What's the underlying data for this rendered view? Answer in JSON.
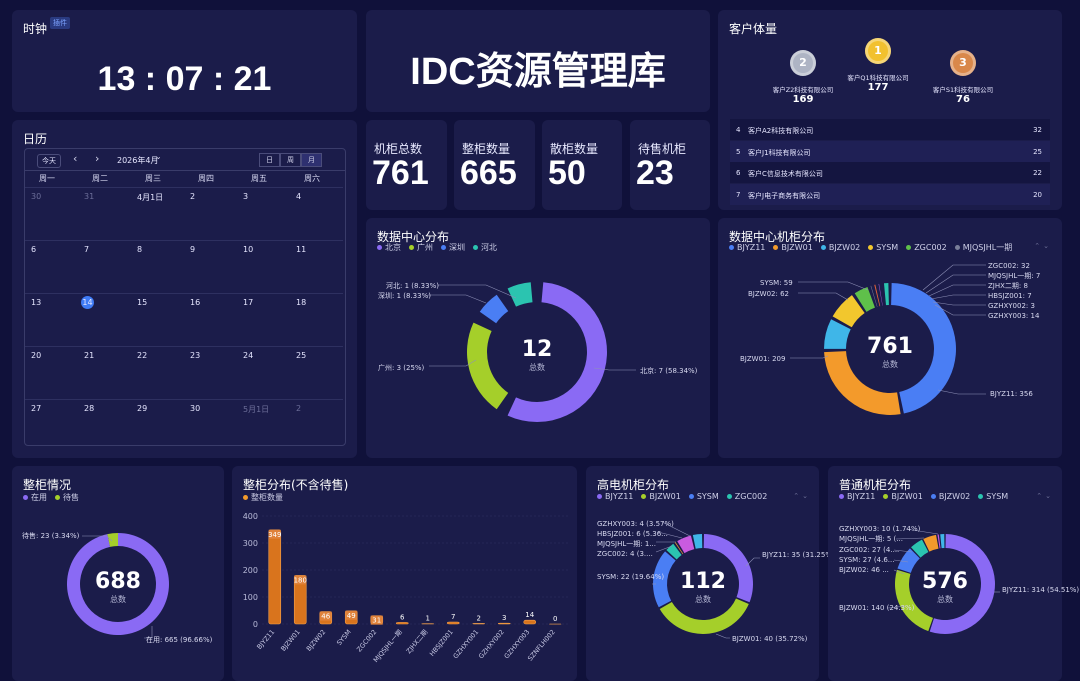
{
  "clock": {
    "title": "时钟",
    "badge": "插件",
    "time": "13 : 07 : 21"
  },
  "header": {
    "title": "IDC资源管理库"
  },
  "calendar": {
    "title": "日历",
    "today_btn": "今天",
    "prev": "‹",
    "next": "›",
    "month": "2026年4月",
    "month_caret": "⌄",
    "views": [
      "日",
      "周",
      "月"
    ],
    "weekdays": [
      "周一",
      "周二",
      "周三",
      "周四",
      "周五",
      "周六"
    ],
    "weeks": [
      [
        {
          "d": "30",
          "dim": true
        },
        {
          "d": "31",
          "dim": true
        },
        {
          "d": "4月1日"
        },
        {
          "d": "2"
        },
        {
          "d": "3"
        },
        {
          "d": "4"
        }
      ],
      [
        {
          "d": "6"
        },
        {
          "d": "7"
        },
        {
          "d": "8"
        },
        {
          "d": "9"
        },
        {
          "d": "10"
        },
        {
          "d": "11"
        }
      ],
      [
        {
          "d": "13"
        },
        {
          "d": "14",
          "today": true
        },
        {
          "d": "15"
        },
        {
          "d": "16"
        },
        {
          "d": "17"
        },
        {
          "d": "18"
        }
      ],
      [
        {
          "d": "20"
        },
        {
          "d": "21"
        },
        {
          "d": "22"
        },
        {
          "d": "23"
        },
        {
          "d": "24"
        },
        {
          "d": "25"
        }
      ],
      [
        {
          "d": "27"
        },
        {
          "d": "28"
        },
        {
          "d": "29"
        },
        {
          "d": "30"
        },
        {
          "d": "5月1日",
          "dim": true
        },
        {
          "d": "2",
          "dim": true
        }
      ]
    ]
  },
  "stats": [
    {
      "label": "机柜总数",
      "value": "761"
    },
    {
      "label": "整柜数量",
      "value": "665"
    },
    {
      "label": "散柜数量",
      "value": "50"
    },
    {
      "label": "待售机柜",
      "value": "23"
    }
  ],
  "customers": {
    "title": "客户体量",
    "podium": [
      {
        "rank": "2",
        "name": "客户Z2科技有限公司",
        "value": "169",
        "color": "#aeb4c4"
      },
      {
        "rank": "1",
        "name": "客户Q1科技有限公司",
        "value": "177",
        "color": "#f2c12e"
      },
      {
        "rank": "3",
        "name": "客户S1科技有限公司",
        "value": "76",
        "color": "#d9884a"
      }
    ],
    "list": [
      {
        "rank": "4",
        "name": "客户A2科技有限公司",
        "value": "32"
      },
      {
        "rank": "5",
        "name": "客户J1科技有限公司",
        "value": "25"
      },
      {
        "rank": "6",
        "name": "客户C信息技术有限公司",
        "value": "22"
      },
      {
        "rank": "7",
        "name": "客户J电子商务有限公司",
        "value": "20"
      }
    ]
  },
  "chart_data": [
    {
      "id": "dc",
      "type": "donut",
      "title": "数据中心分布",
      "center_value": "12",
      "center_label": "总数",
      "series": [
        {
          "name": "北京",
          "value": 7,
          "label": "北京: 7 (58.34%)",
          "color": "#8a6af4"
        },
        {
          "name": "广州",
          "value": 3,
          "label": "广州: 3 (25%)",
          "color": "#a5cf2a"
        },
        {
          "name": "深圳",
          "value": 1,
          "label": "深圳: 1 (8.33%)",
          "color": "#4a7ef4"
        },
        {
          "name": "河北",
          "value": 1,
          "label": "河北: 1 (8.33%)",
          "color": "#2bc4b0"
        }
      ]
    },
    {
      "id": "cab",
      "type": "donut",
      "title": "数据中心机柜分布",
      "center_value": "761",
      "center_label": "总数",
      "legend": [
        "BJYZ11",
        "BJZW01",
        "BJZW02",
        "SYSM",
        "ZGC002",
        "MJQSJHL一期"
      ],
      "series": [
        {
          "name": "BJYZ11",
          "value": 356,
          "label": "BJYZ11: 356",
          "color": "#4a7ef4"
        },
        {
          "name": "BJZW01",
          "value": 209,
          "label": "BJZW01: 209",
          "color": "#f39a2b"
        },
        {
          "name": "BJZW02",
          "value": 62,
          "label": "BJZW02: 62",
          "color": "#3fb6e8"
        },
        {
          "name": "SYSM",
          "value": 59,
          "label": "SYSM: 59",
          "color": "#f2c72d"
        },
        {
          "name": "ZGC002",
          "value": 32,
          "label": "ZGC002: 32",
          "color": "#5fc04a"
        },
        {
          "name": "MJQSJHL一期",
          "value": 7,
          "label": "MJQSJHL一期: 7",
          "color": "#7a7f99"
        },
        {
          "name": "ZJHX二期",
          "value": 8,
          "label": "ZJHX二期: 8",
          "color": "#e0603a"
        },
        {
          "name": "HBSJZ001",
          "value": 7,
          "label": "HBSJZ001: 7",
          "color": "#9b59d0"
        },
        {
          "name": "GZHXY002",
          "value": 3,
          "label": "GZHXY002: 3",
          "color": "#d84a8a"
        },
        {
          "name": "GZHXY003",
          "value": 14,
          "label": "GZHXY003: 14",
          "color": "#2bc4b0"
        }
      ]
    },
    {
      "id": "whole",
      "type": "donut",
      "title": "整柜情况",
      "center_value": "688",
      "center_label": "总数",
      "series": [
        {
          "name": "在用",
          "value": 665,
          "label": "在用: 665 (96.66%)",
          "color": "#8a6af4"
        },
        {
          "name": "待售",
          "value": 23,
          "label": "待售: 23 (3.34%)",
          "color": "#a5cf2a"
        }
      ]
    },
    {
      "id": "bar",
      "type": "bar",
      "title": "整柜分布(不含待售)",
      "legend": [
        "整柜数量"
      ],
      "ylim": [
        0,
        400
      ],
      "yticks": [
        "0",
        "100",
        "200",
        "300",
        "400"
      ],
      "categories": [
        "BJYZ11",
        "BJZW01",
        "BJZW02",
        "SYSM",
        "ZGC002",
        "MJQSJHL一期",
        "ZJHX二期",
        "HBSJZ001",
        "GZHXY001",
        "GZHXY002",
        "GZHXY003",
        "SZNFLH002"
      ],
      "values": [
        349,
        180,
        46,
        49,
        31,
        6,
        1,
        7,
        2,
        3,
        14,
        0
      ]
    },
    {
      "id": "hp",
      "type": "donut",
      "title": "高电机柜分布",
      "center_value": "112",
      "center_label": "总数",
      "legend": [
        "BJYZ11",
        "BJZW01",
        "SYSM",
        "ZGC002"
      ],
      "series": [
        {
          "name": "BJYZ11",
          "value": 35,
          "label": "BJYZ11: 35 (31.25%)",
          "color": "#8a6af4"
        },
        {
          "name": "BJZW01",
          "value": 40,
          "label": "BJZW01: 40 (35.72%)",
          "color": "#a5cf2a"
        },
        {
          "name": "SYSM",
          "value": 22,
          "label": "SYSM: 22 (19.64%)",
          "color": "#4a7ef4"
        },
        {
          "name": "ZGC002",
          "value": 4,
          "label": "ZGC002: 4 (3....",
          "color": "#2bc4b0"
        },
        {
          "name": "MJQSJHL一期",
          "value": 1,
          "label": "MJQSJHL一期: 1...",
          "color": "#f39a2b"
        },
        {
          "name": "HBSJZ001",
          "value": 6,
          "label": "HBSJZ001: 6 (5.36...",
          "color": "#c95be0"
        },
        {
          "name": "GZHXY003",
          "value": 4,
          "label": "GZHXY003: 4 (3.57%)",
          "color": "#3fb6e8"
        }
      ]
    },
    {
      "id": "norm",
      "type": "donut",
      "title": "普通机柜分布",
      "center_value": "576",
      "center_label": "总数",
      "legend": [
        "BJYZ11",
        "BJZW01",
        "BJZW02",
        "SYSM"
      ],
      "series": [
        {
          "name": "BJYZ11",
          "value": 314,
          "label": "BJYZ11: 314 (54.51%)",
          "color": "#8a6af4"
        },
        {
          "name": "BJZW01",
          "value": 140,
          "label": "BJZW01: 140 (24.3%)",
          "color": "#a5cf2a"
        },
        {
          "name": "BJZW02",
          "value": 46,
          "label": "BJZW02: 46 ...",
          "color": "#4a7ef4"
        },
        {
          "name": "SYSM",
          "value": 27,
          "label": "SYSM: 27 (4.6...",
          "color": "#2bc4b0"
        },
        {
          "name": "ZGC002",
          "value": 27,
          "label": "ZGC002: 27 (4....",
          "color": "#f39a2b"
        },
        {
          "name": "MJQSJHL一期",
          "value": 5,
          "label": "MJQSJHL一期: 5 (...",
          "color": "#c95be0"
        },
        {
          "name": "GZHXY003",
          "value": 10,
          "label": "GZHXY003: 10 (1.74%)",
          "color": "#3fb6e8"
        }
      ]
    }
  ]
}
